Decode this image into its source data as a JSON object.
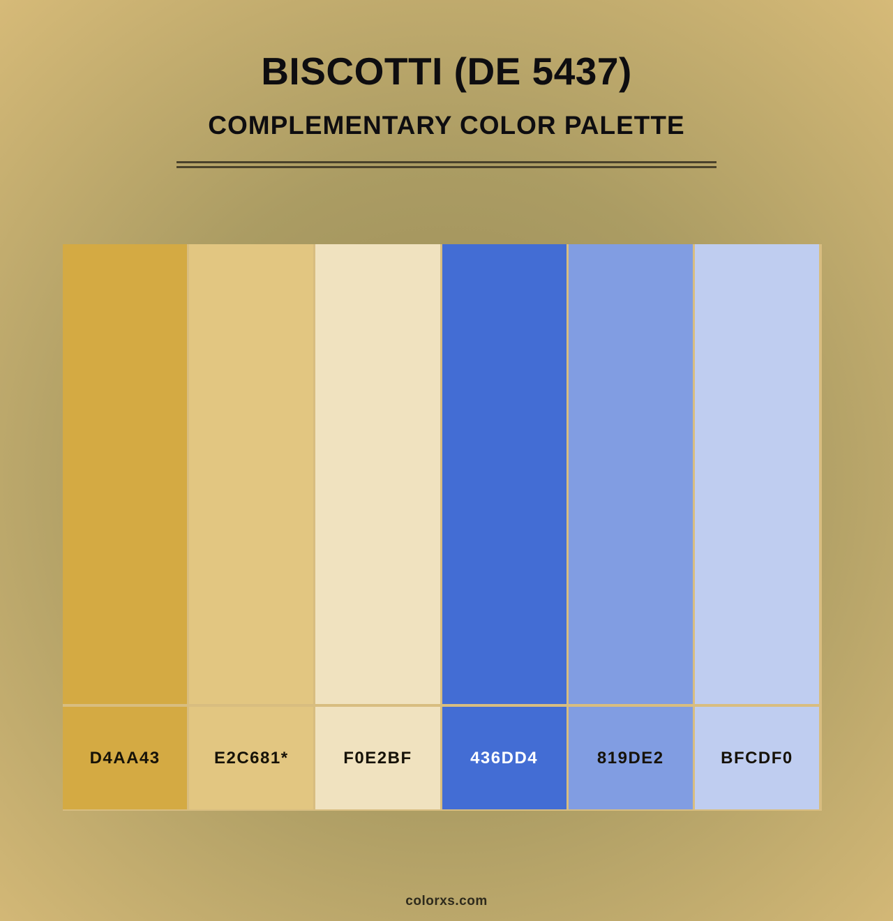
{
  "header": {
    "title": "BISCOTTI (DE 5437)",
    "subtitle": "COMPLEMENTARY COLOR PALETTE"
  },
  "palette": {
    "swatches": [
      {
        "label": "D4AA43",
        "color": "#D4AA43",
        "label_text_color": "#161208"
      },
      {
        "label": "E2C681*",
        "color": "#E2C681",
        "label_text_color": "#161208"
      },
      {
        "label": "F0E2BF",
        "color": "#F0E2BF",
        "label_text_color": "#161208"
      },
      {
        "label": "436DD4",
        "color": "#436DD4",
        "label_text_color": "#FFFFFF"
      },
      {
        "label": "819DE2",
        "color": "#819DE2",
        "label_text_color": "#161208"
      },
      {
        "label": "BFCDF0",
        "color": "#BFCDF0",
        "label_text_color": "#161208"
      }
    ]
  },
  "footer": {
    "brand": "colorxs.com"
  },
  "colors": {
    "bg_corner": "#D6BA78",
    "bg_mid": "#AB9C63",
    "bg_center": "#998B57",
    "grout": "#D8BD80",
    "divider": "#4A422B",
    "title_text": "#0E0D10",
    "footer_text": "#2E2A1C"
  }
}
